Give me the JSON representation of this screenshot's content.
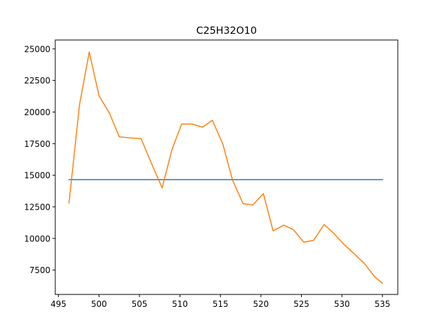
{
  "chart_data": {
    "type": "line",
    "title": "C25H32O10",
    "xlabel": "",
    "ylabel": "",
    "xlim": [
      494.6,
      536.9
    ],
    "ylim": [
      5570,
      25700
    ],
    "grid": false,
    "xticks": [
      495,
      500,
      505,
      510,
      515,
      520,
      525,
      530,
      535
    ],
    "yticks": [
      7500,
      10000,
      12500,
      15000,
      17500,
      20000,
      22500,
      25000
    ],
    "series": [
      {
        "color": "#1f77b4",
        "x": [
          496.3,
          535.0
        ],
        "y": [
          14650,
          14650
        ]
      },
      {
        "color": "#ff7f0e",
        "x": [
          496.3,
          497.6,
          498.8,
          500.0,
          501.3,
          502.5,
          503.8,
          505.2,
          506.5,
          507.8,
          509.0,
          510.2,
          511.5,
          512.8,
          514.0,
          515.3,
          516.5,
          517.8,
          519.0,
          520.3,
          521.5,
          522.8,
          524.0,
          525.3,
          526.5,
          527.8,
          529.0,
          530.3,
          531.5,
          532.8,
          534.0,
          535.0
        ],
        "y": [
          12800,
          20600,
          24750,
          21300,
          19900,
          18050,
          17950,
          17900,
          15900,
          14000,
          17000,
          19050,
          19050,
          18800,
          19350,
          17450,
          14600,
          12750,
          12650,
          13550,
          10600,
          11050,
          10700,
          9700,
          9850,
          11100,
          10400,
          9500,
          8800,
          8000,
          7000,
          6450
        ]
      }
    ]
  }
}
